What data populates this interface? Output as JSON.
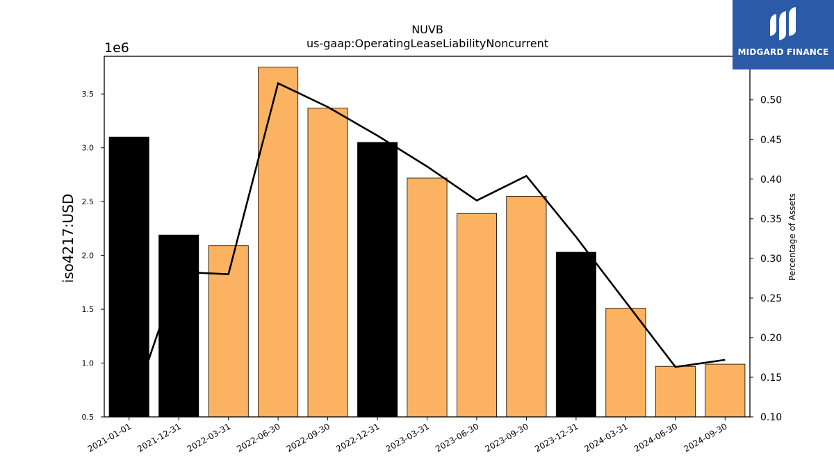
{
  "chart_data": {
    "type": "bar",
    "title": "NUVB",
    "subtitle": "us-gaap:OperatingLeaseLiabilityNoncurrent",
    "ylabel": "iso4217:USD",
    "y2label": "Percentage of Assets",
    "y_scale_label": "1e6",
    "ylim": [
      0.5,
      3.85
    ],
    "y2lim": [
      0.1,
      0.555
    ],
    "y_ticks": [
      "0.5",
      "1.0",
      "1.5",
      "2.0",
      "2.5",
      "3.0",
      "3.5"
    ],
    "y2_ticks": [
      "0.10",
      "0.15",
      "0.20",
      "0.25",
      "0.30",
      "0.35",
      "0.40",
      "0.45",
      "0.50"
    ],
    "categories": [
      "2021-01-01",
      "2021-12-31",
      "2022-03-31",
      "2022-06-30",
      "2022-09-30",
      "2022-12-31",
      "2023-03-31",
      "2023-06-30",
      "2023-09-30",
      "2023-12-31",
      "2024-03-31",
      "2024-06-30",
      "2024-09-30"
    ],
    "series": [
      {
        "kind": "bar",
        "values": [
          3.1,
          2.19,
          2.09,
          3.75,
          3.37,
          3.05,
          2.72,
          2.39,
          2.55,
          2.03,
          1.51,
          0.97,
          0.99
        ],
        "colors": [
          "#000000",
          "#000000",
          "#fbb362",
          "#fbb362",
          "#fbb362",
          "#000000",
          "#fbb362",
          "#fbb362",
          "#fbb362",
          "#000000",
          "#fbb362",
          "#fbb362",
          "#fbb362"
        ]
      },
      {
        "kind": "line",
        "axis": "right",
        "values": [
          0.1,
          0.283,
          0.28,
          0.521,
          0.491,
          0.455,
          0.416,
          0.373,
          0.404,
          0.327,
          0.245,
          0.163,
          0.172
        ],
        "color": "#000000"
      }
    ],
    "grid": false
  },
  "logo": {
    "text": "MIDGARD FINANCE",
    "background": "#2a5aa8"
  }
}
